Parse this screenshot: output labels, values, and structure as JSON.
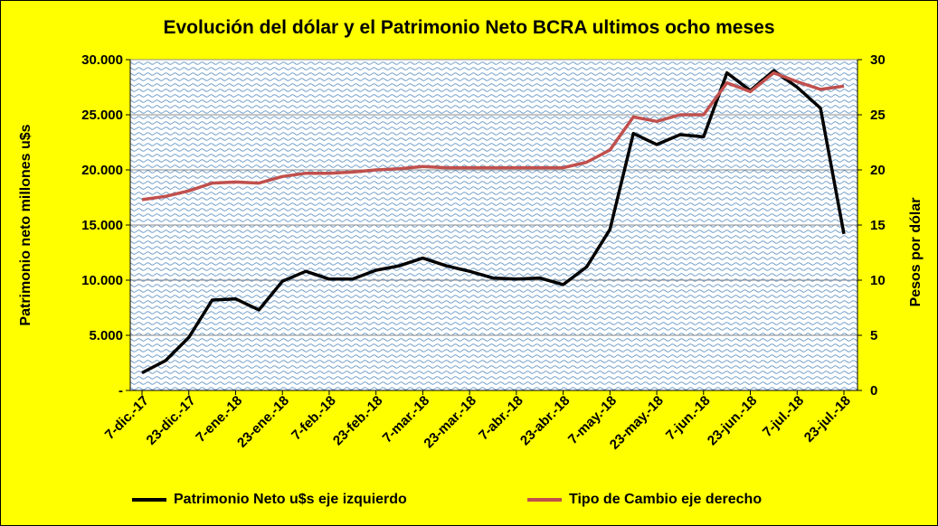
{
  "chart_data": {
    "type": "line",
    "title": "Evolución del dólar y el Patrimonio Neto BCRA ultimos ocho meses",
    "ylabel_left": "Patrimonio neto millones u$s",
    "ylabel_right": "Pesos por dólar",
    "ylim_left": [
      0,
      30000
    ],
    "ylim_right": [
      0,
      30
    ],
    "yticks_left": [
      "-",
      "5.000",
      "10.000",
      "15.000",
      "20.000",
      "25.000",
      "30.000"
    ],
    "yticks_right": [
      "0",
      "5",
      "10",
      "15",
      "20",
      "25",
      "30"
    ],
    "x_tick_labels": [
      "7-dic.-17",
      "23-dic.-17",
      "7-ene.-18",
      "23-ene.-18",
      "7-feb.-18",
      "23-feb.-18",
      "7-mar.-18",
      "23-mar.-18",
      "7-abr.-18",
      "23-abr.-18",
      "7-may.-18",
      "23-may.-18",
      "7-jun.-18",
      "23-jun.-18",
      "7-jul.-18",
      "23-jul.-18"
    ],
    "grid": true,
    "legend_position": "bottom",
    "series": [
      {
        "name": "Patrimonio Neto u$s eje izquierdo",
        "axis": "left",
        "color": "#000000",
        "values": [
          1600,
          2700,
          4800,
          8200,
          8300,
          7300,
          9900,
          10800,
          10100,
          10100,
          10900,
          11300,
          12000,
          11300,
          10800,
          10200,
          10100,
          10200,
          9600,
          11200,
          14600,
          23300,
          22300,
          23200,
          23000,
          28800,
          27200,
          29000,
          27500,
          25600,
          14200
        ]
      },
      {
        "name": "Tipo de Cambio eje derecho",
        "axis": "right",
        "color": "#c0504d",
        "values": [
          17.3,
          17.6,
          18.1,
          18.8,
          18.9,
          18.8,
          19.4,
          19.7,
          19.7,
          19.8,
          20.0,
          20.1,
          20.3,
          20.2,
          20.2,
          20.2,
          20.2,
          20.2,
          20.2,
          20.7,
          21.8,
          24.8,
          24.4,
          25.0,
          25.0,
          27.9,
          27.1,
          28.8,
          28.0,
          27.3,
          27.6
        ]
      }
    ]
  }
}
